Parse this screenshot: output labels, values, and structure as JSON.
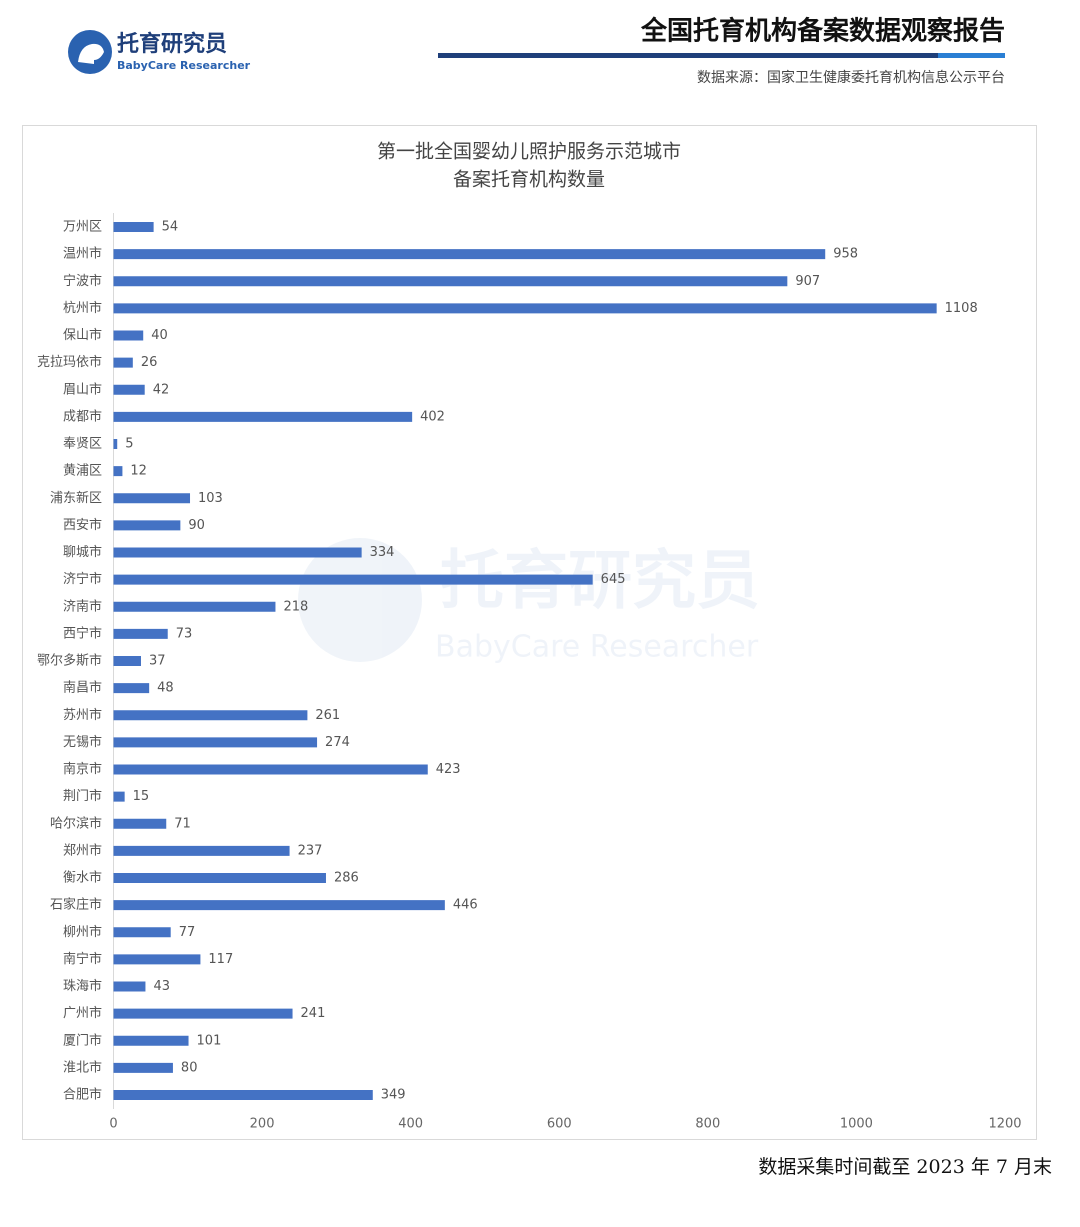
{
  "header": {
    "logo_name": "托育研究员",
    "logo_subtitle": "BabyCare Researcher",
    "title": "全国托育机构备案数据观察报告",
    "source": "数据来源：国家卫生健康委托育机构信息公示平台"
  },
  "watermark": {
    "name": "托育研究员",
    "subtitle": "BabyCare Researcher"
  },
  "chart_data": {
    "type": "bar",
    "orientation": "horizontal",
    "title": [
      "第一批全国婴幼儿照护服务示范城市",
      "备案托育机构数量"
    ],
    "categories": [
      "万州区",
      "温州市",
      "宁波市",
      "杭州市",
      "保山市",
      "克拉玛依市",
      "眉山市",
      "成都市",
      "奉贤区",
      "黄浦区",
      "浦东新区",
      "西安市",
      "聊城市",
      "济宁市",
      "济南市",
      "西宁市",
      "鄂尔多斯市",
      "南昌市",
      "苏州市",
      "无锡市",
      "南京市",
      "荆门市",
      "哈尔滨市",
      "郑州市",
      "衡水市",
      "石家庄市",
      "柳州市",
      "南宁市",
      "珠海市",
      "广州市",
      "厦门市",
      "淮北市",
      "合肥市"
    ],
    "values": [
      54,
      958,
      907,
      1108,
      40,
      26,
      42,
      402,
      5,
      12,
      103,
      90,
      334,
      645,
      218,
      73,
      37,
      48,
      261,
      274,
      423,
      15,
      71,
      237,
      286,
      446,
      77,
      117,
      43,
      241,
      101,
      80,
      349
    ],
    "color": "#4472c4",
    "xlim": [
      0,
      1200
    ],
    "xticks": [
      0,
      200,
      400,
      600,
      800,
      1000,
      1200
    ],
    "grid": false
  },
  "footer": {
    "note": "数据采集时间截至 2023 年 7 月末"
  }
}
